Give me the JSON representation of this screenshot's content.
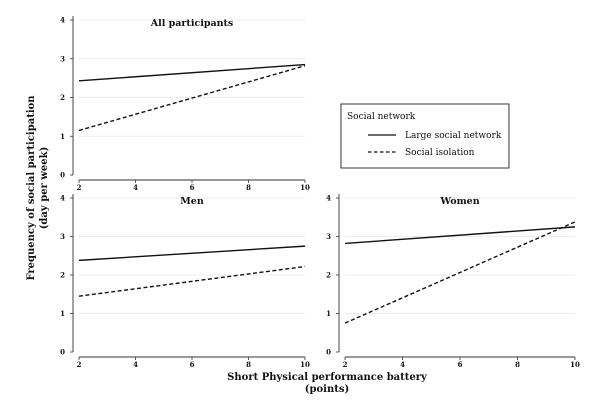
{
  "chart_data": {
    "type": "line",
    "ylabel": "Frequency of social participation",
    "ylabel_unit": "(day per week)",
    "xlabel": "Short Physical performance battery",
    "xlabel_unit": "(points)",
    "legend": {
      "title": "Social network",
      "placement": "right",
      "entries": [
        {
          "label": "Large social network",
          "style": "solid"
        },
        {
          "label": "Social isolation",
          "style": "dashed"
        }
      ]
    },
    "grid": true,
    "xlim": [
      2,
      10
    ],
    "ylim": [
      0,
      4
    ],
    "xticks": [
      "2",
      "4",
      "6",
      "8",
      "10"
    ],
    "yticks": [
      "0",
      "1",
      "2",
      "3",
      "4"
    ],
    "panels": [
      {
        "title": "All participants",
        "x": [
          2,
          10
        ],
        "series": [
          {
            "name": "Large social network",
            "style": "solid",
            "values": [
              2.43,
              2.85
            ]
          },
          {
            "name": "Social isolation",
            "style": "dashed",
            "values": [
              1.15,
              2.82
            ]
          }
        ]
      },
      {
        "title": "Men",
        "x": [
          2,
          10
        ],
        "series": [
          {
            "name": "Large social network",
            "style": "solid",
            "values": [
              2.38,
              2.75
            ]
          },
          {
            "name": "Social isolation",
            "style": "dashed",
            "values": [
              1.45,
              2.22
            ]
          }
        ]
      },
      {
        "title": "Women",
        "x": [
          2,
          10
        ],
        "series": [
          {
            "name": "Large social network",
            "style": "solid",
            "values": [
              2.82,
              3.25
            ]
          },
          {
            "name": "Social isolation",
            "style": "dashed",
            "values": [
              0.75,
              3.38
            ]
          }
        ]
      }
    ]
  }
}
